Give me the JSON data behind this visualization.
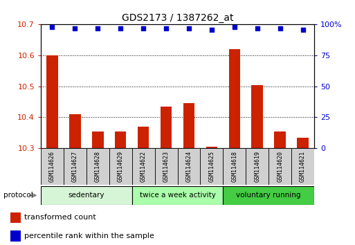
{
  "title": "GDS2173 / 1387262_at",
  "categories": [
    "GSM114626",
    "GSM114627",
    "GSM114628",
    "GSM114629",
    "GSM114622",
    "GSM114623",
    "GSM114624",
    "GSM114625",
    "GSM114618",
    "GSM114619",
    "GSM114620",
    "GSM114621"
  ],
  "bar_values": [
    10.6,
    10.41,
    10.355,
    10.355,
    10.37,
    10.435,
    10.445,
    10.305,
    10.62,
    10.505,
    10.355,
    10.335
  ],
  "percentile_values": [
    98,
    97,
    97,
    97,
    97,
    97,
    97,
    96,
    98,
    97,
    97,
    96
  ],
  "bar_color": "#cc2200",
  "dot_color": "#0000cc",
  "ylim_left": [
    10.3,
    10.7
  ],
  "ylim_right": [
    0,
    100
  ],
  "yticks_left": [
    10.3,
    10.4,
    10.5,
    10.6,
    10.7
  ],
  "yticks_right": [
    0,
    25,
    50,
    75,
    100
  ],
  "groups": [
    {
      "label": "sedentary",
      "start": 0,
      "end": 4,
      "color": "#d6f5d6"
    },
    {
      "label": "twice a week activity",
      "start": 4,
      "end": 8,
      "color": "#aaffaa"
    },
    {
      "label": "voluntary running",
      "start": 8,
      "end": 12,
      "color": "#44cc44"
    }
  ],
  "protocol_label": "protocol",
  "legend_bar_label": "transformed count",
  "legend_dot_label": "percentile rank within the sample",
  "background_color": "#ffffff",
  "tick_label_color_left": "#cc2200",
  "tick_label_color_right": "#0000cc",
  "bar_width": 0.5,
  "label_box_color": "#d0d0d0",
  "title_fontsize": 10
}
